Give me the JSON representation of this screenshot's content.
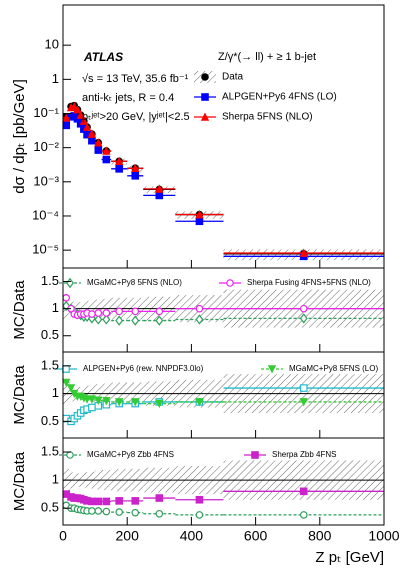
{
  "chart_data": [
    {
      "type": "scatter",
      "experiment": "ATLAS",
      "process": "Z/γ*(→ ll) + ≥ 1 b-jet",
      "annotations": [
        "√s = 13 TeV, 35.6 fb⁻¹",
        "anti-kₜ jets, R = 0.4",
        "pₜʲᵉᵗ>20 GeV, |yʲᵉᵗ|<2.5"
      ],
      "y_label": "dσ / dpₜ [pb/GeV]",
      "log_y": true,
      "bins": [
        0,
        20,
        30,
        40,
        50,
        60,
        70,
        80,
        100,
        120,
        150,
        200,
        250,
        350,
        500,
        1000
      ],
      "xlim": [
        0,
        1000
      ],
      "xticks": [
        0,
        200,
        400,
        600,
        800,
        1000
      ],
      "ylim": [
        3e-06,
        150
      ],
      "yticks": [
        10,
        1,
        {
          "value": 0.1,
          "label": "10⁻¹"
        },
        {
          "value": 0.01,
          "label": "10⁻²"
        },
        {
          "value": 0.001,
          "label": "10⁻³"
        },
        {
          "value": 0.0001,
          "label": "10⁻⁴"
        },
        {
          "value": 1e-05,
          "label": "10⁻⁵"
        }
      ],
      "series": [
        {
          "name": "Data",
          "color": "#000000",
          "marker": "circle",
          "values": [
            0.08,
            0.16,
            0.17,
            0.13,
            0.09,
            0.06,
            0.04,
            0.025,
            0.014,
            0.008,
            0.004,
            0.0025,
            0.0006,
            0.00011,
            7.8e-06
          ],
          "uncertainty": [
            0.2,
            0.15,
            0.13,
            0.12,
            0.12,
            0.13,
            0.14,
            0.15,
            0.17,
            0.18,
            0.2,
            0.2,
            0.22,
            0.25,
            0.35
          ]
        },
        {
          "name": "ALPGEN+Py6 4FNS (LO)",
          "color": "#0000ff",
          "marker": "square",
          "values": [
            0.045,
            0.08,
            0.085,
            0.07,
            0.05,
            0.035,
            0.024,
            0.016,
            0.0085,
            0.0045,
            0.0024,
            0.0015,
            0.0004,
            7e-05,
            6.6e-06
          ]
        },
        {
          "name": "Sherpa 5FNS (NLO)",
          "color": "#ff0000",
          "marker": "triangle",
          "values": [
            0.075,
            0.15,
            0.16,
            0.13,
            0.09,
            0.06,
            0.04,
            0.025,
            0.014,
            0.008,
            0.004,
            0.0025,
            0.00062,
            0.00011,
            8.2e-06
          ]
        }
      ]
    },
    {
      "type": "scatter",
      "y_label": "MC/Data",
      "bins": [
        0,
        20,
        30,
        40,
        50,
        60,
        70,
        80,
        100,
        120,
        150,
        200,
        250,
        350,
        500,
        1000
      ],
      "xlim": [
        0,
        1000
      ],
      "xticks": [
        0,
        200,
        400,
        600,
        800,
        1000
      ],
      "ylim": [
        0.2,
        1.75
      ],
      "yticks": [
        0.5,
        1,
        1.5
      ],
      "reference_line": 1,
      "data_uncertainty": [
        0.2,
        0.15,
        0.13,
        0.12,
        0.12,
        0.13,
        0.14,
        0.15,
        0.17,
        0.18,
        0.2,
        0.2,
        0.22,
        0.25,
        0.35
      ],
      "series": [
        {
          "name": "MGaMC+Py8 5FNS (NLO)",
          "color": "#2e9e5b",
          "marker": "open-diamond",
          "line_style": "dashed",
          "values": [
            1.05,
            1.0,
            0.95,
            0.9,
            0.88,
            0.85,
            0.85,
            0.82,
            0.8,
            0.8,
            0.78,
            0.78,
            0.78,
            0.8,
            0.82
          ]
        },
        {
          "name": "Sherpa Fusing 4FNS+5FNS (NLO)",
          "color": "#ee22ee",
          "marker": "open-circle",
          "line_style": "solid",
          "values": [
            1.2,
            1.0,
            0.9,
            0.88,
            0.9,
            0.9,
            0.92,
            0.9,
            0.92,
            0.92,
            0.95,
            0.95,
            0.95,
            1.0,
            1.0
          ]
        }
      ]
    },
    {
      "type": "scatter",
      "y_label": "MC/Data",
      "bins": [
        0,
        20,
        30,
        40,
        50,
        60,
        70,
        80,
        100,
        120,
        150,
        200,
        250,
        350,
        500,
        1000
      ],
      "xlim": [
        0,
        1000
      ],
      "xticks": [
        0,
        200,
        400,
        600,
        800,
        1000
      ],
      "ylim": [
        0.2,
        1.75
      ],
      "yticks": [
        0.5,
        1,
        1.5
      ],
      "reference_line": 1,
      "data_uncertainty": [
        0.2,
        0.15,
        0.13,
        0.12,
        0.12,
        0.13,
        0.14,
        0.15,
        0.17,
        0.18,
        0.2,
        0.2,
        0.22,
        0.25,
        0.35
      ],
      "series": [
        {
          "name": "ALPGEN+Py6 (rew. NNPDF3.0lo)",
          "color": "#22bbcc",
          "marker": "open-square",
          "line_style": "solid",
          "values": [
            0.55,
            0.5,
            0.55,
            0.6,
            0.65,
            0.7,
            0.72,
            0.75,
            0.78,
            0.8,
            0.82,
            0.82,
            0.85,
            0.85,
            1.1
          ]
        },
        {
          "name": "MGaMC+Py8 5FNS (LO)",
          "color": "#33cc33",
          "marker": "triangle-down",
          "line_style": "dashed",
          "values": [
            1.2,
            1.1,
            1.0,
            0.95,
            0.95,
            0.92,
            0.9,
            0.9,
            0.88,
            0.87,
            0.85,
            0.85,
            0.82,
            0.85,
            0.85
          ]
        }
      ]
    },
    {
      "type": "scatter",
      "y_label": "MC/Data",
      "x_label": "Z pₜ [GeV]",
      "bins": [
        0,
        20,
        30,
        40,
        50,
        60,
        70,
        80,
        100,
        120,
        150,
        200,
        250,
        350,
        500,
        1000
      ],
      "xlim": [
        0,
        1000
      ],
      "xticks": [
        0,
        200,
        400,
        600,
        800,
        1000
      ],
      "ylim": [
        0.2,
        1.75
      ],
      "yticks": [
        0.5,
        1,
        1.5
      ],
      "reference_line": 1,
      "data_uncertainty": [
        0.2,
        0.15,
        0.13,
        0.12,
        0.12,
        0.13,
        0.14,
        0.15,
        0.17,
        0.18,
        0.2,
        0.2,
        0.22,
        0.25,
        0.35
      ],
      "series": [
        {
          "name": "MGaMC+Py8 Zbb 4FNS",
          "color": "#2e9e5b",
          "marker": "open-circle",
          "line_style": "dashed",
          "values": [
            0.55,
            0.5,
            0.5,
            0.48,
            0.47,
            0.46,
            0.45,
            0.45,
            0.45,
            0.44,
            0.43,
            0.42,
            0.4,
            0.38,
            0.38
          ]
        },
        {
          "name": "Sherpa Zbb 4FNS",
          "color": "#cc22cc",
          "marker": "square",
          "line_style": "solid",
          "values": [
            0.75,
            0.7,
            0.68,
            0.68,
            0.67,
            0.65,
            0.63,
            0.62,
            0.62,
            0.62,
            0.63,
            0.63,
            0.68,
            0.65,
            0.8
          ]
        }
      ]
    }
  ]
}
